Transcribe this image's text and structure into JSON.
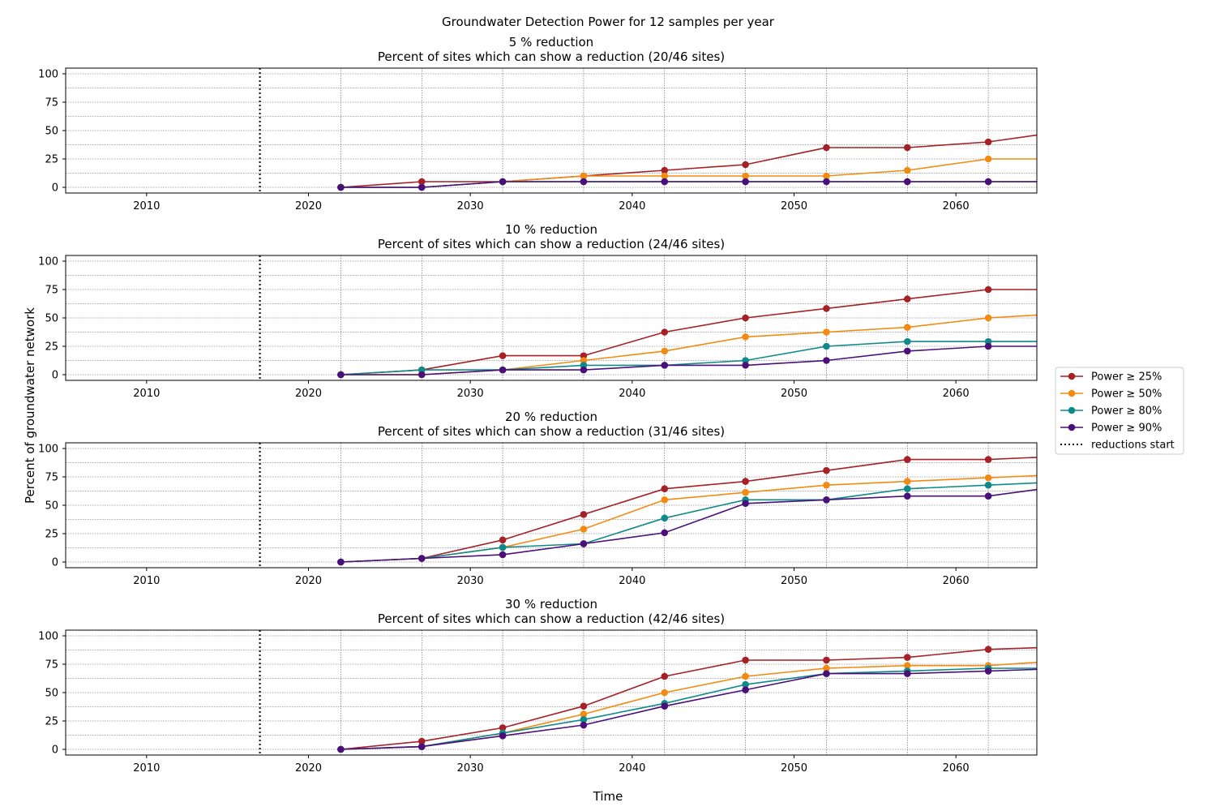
{
  "figure": {
    "title": "Groundwater Detection Power for 12 samples per year",
    "ylabel": "Percent of groundwater network",
    "xlabel": "Time"
  },
  "colors": {
    "Power ≥ 25%": "#a52126",
    "Power ≥ 50%": "#f38b12",
    "Power ≥ 80%": "#0f8a8a",
    "Power ≥ 90%": "#4b0f7a",
    "reductions_start": "#000000"
  },
  "legend": {
    "entries": [
      "Power ≥ 25%",
      "Power ≥ 50%",
      "Power ≥ 80%",
      "Power ≥ 90%",
      "reductions start"
    ],
    "placement": "right-center"
  },
  "chart_data": [
    {
      "type": "line",
      "title": "5 % reduction",
      "subtitle": "Percent of sites which can show a reduction (20/46 sites)",
      "xlim": [
        2005,
        2065
      ],
      "ylim": [
        -5,
        105
      ],
      "xticks": [
        2010,
        2020,
        2030,
        2040,
        2050,
        2060
      ],
      "yticks": [
        0,
        25,
        50,
        75,
        100
      ],
      "grid": true,
      "reductions_start": 2017,
      "x": [
        2022,
        2027,
        2032,
        2037,
        2042,
        2047,
        2052,
        2057,
        2062,
        2067
      ],
      "series": [
        {
          "name": "Power ≥ 25%",
          "values": [
            0,
            5,
            5,
            10,
            15,
            20,
            35,
            35,
            40,
            50
          ]
        },
        {
          "name": "Power ≥ 50%",
          "values": [
            0,
            0,
            5,
            10,
            10,
            10,
            10,
            15,
            25,
            25
          ]
        },
        {
          "name": "Power ≥ 80%",
          "values": [
            0,
            0,
            5,
            5,
            5,
            5,
            5,
            5,
            5,
            5
          ]
        },
        {
          "name": "Power ≥ 90%",
          "values": [
            0,
            0,
            5,
            5,
            5,
            5,
            5,
            5,
            5,
            5
          ]
        }
      ]
    },
    {
      "type": "line",
      "title": "10 % reduction",
      "subtitle": "Percent of sites which can show a reduction (24/46 sites)",
      "xlim": [
        2005,
        2065
      ],
      "ylim": [
        -5,
        105
      ],
      "xticks": [
        2010,
        2020,
        2030,
        2040,
        2050,
        2060
      ],
      "yticks": [
        0,
        25,
        50,
        75,
        100
      ],
      "grid": true,
      "reductions_start": 2017,
      "x": [
        2022,
        2027,
        2032,
        2037,
        2042,
        2047,
        2052,
        2057,
        2062,
        2067
      ],
      "series": [
        {
          "name": "Power ≥ 25%",
          "values": [
            0,
            4.2,
            16.7,
            16.7,
            37.5,
            50,
            58.3,
            66.7,
            75,
            75
          ]
        },
        {
          "name": "Power ≥ 50%",
          "values": [
            0,
            0,
            4.2,
            12.5,
            20.8,
            33.3,
            37.5,
            41.7,
            50,
            54.2
          ]
        },
        {
          "name": "Power ≥ 80%",
          "values": [
            0,
            4.2,
            4.2,
            8.3,
            8.3,
            12.5,
            25,
            29.2,
            29.2,
            29.2
          ]
        },
        {
          "name": "Power ≥ 90%",
          "values": [
            0,
            0,
            4.2,
            4.2,
            8.3,
            8.3,
            12.5,
            20.8,
            25,
            25
          ]
        }
      ]
    },
    {
      "type": "line",
      "title": "20 % reduction",
      "subtitle": "Percent of sites which can show a reduction (31/46 sites)",
      "xlim": [
        2005,
        2065
      ],
      "ylim": [
        -5,
        105
      ],
      "xticks": [
        2010,
        2020,
        2030,
        2040,
        2050,
        2060
      ],
      "yticks": [
        0,
        25,
        50,
        75,
        100
      ],
      "grid": true,
      "reductions_start": 2017,
      "x": [
        2022,
        2027,
        2032,
        2037,
        2042,
        2047,
        2052,
        2057,
        2062,
        2067
      ],
      "series": [
        {
          "name": "Power ≥ 25%",
          "values": [
            0,
            3.2,
            19.4,
            41.9,
            64.5,
            71,
            80.6,
            90.3,
            90.3,
            93.5
          ]
        },
        {
          "name": "Power ≥ 50%",
          "values": [
            0,
            3.2,
            12.9,
            29,
            54.8,
            61.3,
            67.7,
            71,
            74.2,
            77.4
          ]
        },
        {
          "name": "Power ≥ 80%",
          "values": [
            0,
            3.2,
            12.9,
            16.1,
            38.7,
            54.8,
            54.8,
            64.5,
            67.7,
            71
          ]
        },
        {
          "name": "Power ≥ 90%",
          "values": [
            0,
            3.2,
            6.5,
            16.1,
            25.8,
            51.6,
            54.8,
            58.1,
            58.1,
            67.7
          ]
        }
      ]
    },
    {
      "type": "line",
      "title": "30 % reduction",
      "subtitle": "Percent of sites which can show a reduction (42/46 sites)",
      "xlim": [
        2005,
        2065
      ],
      "ylim": [
        -5,
        105
      ],
      "xticks": [
        2010,
        2020,
        2030,
        2040,
        2050,
        2060
      ],
      "yticks": [
        0,
        25,
        50,
        75,
        100
      ],
      "grid": true,
      "reductions_start": 2017,
      "x": [
        2022,
        2027,
        2032,
        2037,
        2042,
        2047,
        2052,
        2057,
        2062,
        2067
      ],
      "series": [
        {
          "name": "Power ≥ 25%",
          "values": [
            0,
            7.1,
            19,
            38.1,
            64.3,
            78.6,
            78.6,
            81,
            88.1,
            90.5
          ]
        },
        {
          "name": "Power ≥ 50%",
          "values": [
            0,
            2.4,
            14.3,
            31,
            50,
            64.3,
            71.4,
            73.8,
            73.8,
            78.6
          ]
        },
        {
          "name": "Power ≥ 80%",
          "values": [
            0,
            2.4,
            14.3,
            26.2,
            40.5,
            57.1,
            66.7,
            69,
            71.4,
            71.4
          ]
        },
        {
          "name": "Power ≥ 90%",
          "values": [
            0,
            2.4,
            11.9,
            21.4,
            38.1,
            52.4,
            66.7,
            66.7,
            69,
            71.4
          ]
        }
      ]
    }
  ]
}
